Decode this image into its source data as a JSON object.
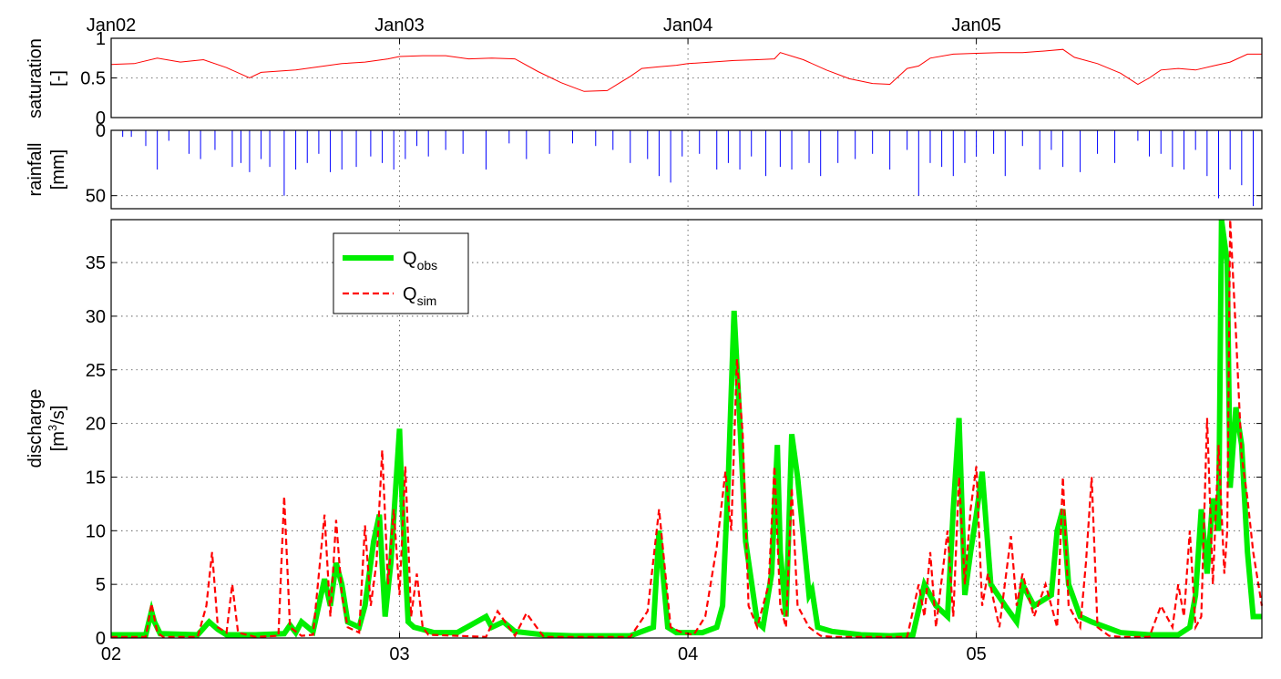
{
  "chart_data": [
    {
      "type": "line",
      "panel": "saturation",
      "ylabel": [
        "saturation",
        "[-]"
      ],
      "ylim": [
        0,
        1
      ],
      "yticks": [
        0,
        0.5,
        1
      ],
      "ytick_labels": [
        "0",
        "0.5",
        "1"
      ],
      "xlim": [
        2002.0,
        2005.99
      ],
      "xtick_labels": [
        "Jan02",
        "Jan03",
        "Jan04",
        "Jan05"
      ],
      "xtick_values": [
        2002,
        2003,
        2004,
        2005
      ],
      "grid": true,
      "series": [
        {
          "color": "#ff0000",
          "x": [
            2002.0,
            2002.08,
            2002.16,
            2002.24,
            2002.32,
            2002.4,
            2002.48,
            2002.52,
            2002.56,
            2002.64,
            2002.72,
            2002.8,
            2002.88,
            2002.96,
            2003.0,
            2003.08,
            2003.16,
            2003.24,
            2003.32,
            2003.4,
            2003.48,
            2003.56,
            2003.64,
            2003.72,
            2003.76,
            2003.8,
            2003.84,
            2003.9,
            2003.96,
            2004.0,
            2004.08,
            2004.16,
            2004.24,
            2004.3,
            2004.32,
            2004.4,
            2004.48,
            2004.56,
            2004.64,
            2004.7,
            2004.76,
            2004.8,
            2004.84,
            2004.92,
            2005.0,
            2005.08,
            2005.16,
            2005.24,
            2005.3,
            2005.34,
            2005.42,
            2005.5,
            2005.56,
            2005.6,
            2005.64,
            2005.7,
            2005.76,
            2005.82,
            2005.88,
            2005.94,
            2005.99
          ],
          "y": [
            0.67,
            0.68,
            0.75,
            0.7,
            0.73,
            0.63,
            0.5,
            0.57,
            0.58,
            0.6,
            0.64,
            0.68,
            0.7,
            0.74,
            0.77,
            0.78,
            0.78,
            0.74,
            0.75,
            0.74,
            0.58,
            0.44,
            0.33,
            0.34,
            0.43,
            0.52,
            0.62,
            0.64,
            0.66,
            0.68,
            0.7,
            0.72,
            0.73,
            0.74,
            0.82,
            0.73,
            0.6,
            0.49,
            0.43,
            0.42,
            0.62,
            0.65,
            0.75,
            0.8,
            0.81,
            0.82,
            0.82,
            0.84,
            0.86,
            0.76,
            0.68,
            0.56,
            0.42,
            0.5,
            0.6,
            0.62,
            0.6,
            0.65,
            0.7,
            0.8,
            0.8
          ]
        }
      ]
    },
    {
      "type": "bar",
      "panel": "rainfall",
      "ylabel": [
        "rainfall",
        "[mm]"
      ],
      "ylim": [
        0,
        60
      ],
      "y_reversed": true,
      "yticks": [
        0,
        50
      ],
      "ytick_labels": [
        "0",
        "50"
      ],
      "xlim": [
        2002.0,
        2005.99
      ],
      "grid": true,
      "series": [
        {
          "color": "#0000ff",
          "x": [
            2002.04,
            2002.07,
            2002.12,
            2002.16,
            2002.2,
            2002.27,
            2002.31,
            2002.36,
            2002.42,
            2002.45,
            2002.48,
            2002.52,
            2002.55,
            2002.6,
            2002.64,
            2002.68,
            2002.72,
            2002.76,
            2002.8,
            2002.85,
            2002.9,
            2002.94,
            2002.98,
            2003.02,
            2003.06,
            2003.1,
            2003.16,
            2003.22,
            2003.3,
            2003.38,
            2003.44,
            2003.52,
            2003.6,
            2003.68,
            2003.74,
            2003.8,
            2003.86,
            2003.9,
            2003.94,
            2003.98,
            2004.04,
            2004.1,
            2004.14,
            2004.18,
            2004.22,
            2004.27,
            2004.32,
            2004.36,
            2004.42,
            2004.46,
            2004.52,
            2004.58,
            2004.64,
            2004.7,
            2004.76,
            2004.8,
            2004.84,
            2004.88,
            2004.92,
            2004.96,
            2005.0,
            2005.06,
            2005.1,
            2005.16,
            2005.22,
            2005.26,
            2005.3,
            2005.36,
            2005.42,
            2005.48,
            2005.56,
            2005.6,
            2005.64,
            2005.68,
            2005.72,
            2005.76,
            2005.8,
            2005.84,
            2005.88,
            2005.92,
            2005.96
          ],
          "values": [
            5,
            5,
            12,
            30,
            8,
            18,
            22,
            15,
            28,
            25,
            32,
            22,
            28,
            50,
            30,
            25,
            18,
            32,
            30,
            28,
            20,
            25,
            30,
            22,
            12,
            20,
            15,
            18,
            30,
            10,
            22,
            18,
            10,
            12,
            15,
            25,
            22,
            35,
            40,
            20,
            18,
            30,
            25,
            30,
            20,
            35,
            28,
            30,
            25,
            35,
            25,
            22,
            18,
            30,
            15,
            50,
            25,
            28,
            35,
            25,
            20,
            18,
            35,
            12,
            30,
            15,
            28,
            32,
            18,
            25,
            8,
            20,
            18,
            28,
            30,
            15,
            35,
            52,
            30,
            42,
            58
          ]
        }
      ]
    },
    {
      "type": "line",
      "panel": "discharge",
      "ylabel": [
        "discharge",
        "[m",
        "3",
        "/s]"
      ],
      "ylim": [
        0,
        39
      ],
      "yticks": [
        0,
        5,
        10,
        15,
        20,
        25,
        30,
        35
      ],
      "ytick_labels": [
        "0",
        "5",
        "10",
        "15",
        "20",
        "25",
        "30",
        "35"
      ],
      "xlim": [
        2002.0,
        2005.99
      ],
      "xtick_values": [
        2002,
        2003,
        2004,
        2005
      ],
      "xtick_labels": [
        "02",
        "03",
        "04",
        "05"
      ],
      "grid": true,
      "legend": "top-left",
      "series": [
        {
          "name": "Q",
          "subscript": "obs",
          "color": "#00ee00",
          "style": "solid",
          "x": [
            2002.0,
            2002.12,
            2002.14,
            2002.15,
            2002.17,
            2002.3,
            2002.34,
            2002.37,
            2002.4,
            2002.5,
            2002.6,
            2002.62,
            2002.64,
            2002.66,
            2002.7,
            2002.74,
            2002.76,
            2002.78,
            2002.8,
            2002.82,
            2002.86,
            2002.88,
            2002.91,
            2002.93,
            2002.95,
            2002.97,
            2003.0,
            2003.01,
            2003.03,
            2003.05,
            2003.08,
            2003.12,
            2003.2,
            2003.3,
            2003.32,
            2003.36,
            2003.4,
            2003.5,
            2003.6,
            2003.7,
            2003.8,
            2003.88,
            2003.9,
            2003.93,
            2003.96,
            2004.0,
            2004.05,
            2004.1,
            2004.12,
            2004.14,
            2004.16,
            2004.18,
            2004.2,
            2004.24,
            2004.26,
            2004.29,
            2004.31,
            2004.32,
            2004.34,
            2004.36,
            2004.38,
            2004.42,
            2004.43,
            2004.45,
            2004.5,
            2004.6,
            2004.7,
            2004.78,
            2004.82,
            2004.86,
            2004.9,
            2004.92,
            2004.94,
            2004.96,
            2004.98,
            2005.0,
            2005.02,
            2005.05,
            2005.1,
            2005.14,
            2005.16,
            2005.2,
            2005.26,
            2005.28,
            2005.3,
            2005.32,
            2005.36,
            2005.4,
            2005.5,
            2005.6,
            2005.7,
            2005.74,
            2005.76,
            2005.78,
            2005.8,
            2005.82,
            2005.84,
            2005.85,
            2005.87,
            2005.88,
            2005.9,
            2005.92,
            2005.94,
            2005.96,
            2005.99
          ],
          "y": [
            0.3,
            0.3,
            2.5,
            1.5,
            0.4,
            0.3,
            1.5,
            0.8,
            0.3,
            0.3,
            0.4,
            1.2,
            0.5,
            1.5,
            0.6,
            5.5,
            3,
            7,
            5,
            1.5,
            1,
            3,
            9,
            11.5,
            2,
            7,
            19.5,
            12,
            1.5,
            1,
            0.8,
            0.5,
            0.5,
            2,
            1,
            1.5,
            0.6,
            0.3,
            0.2,
            0.2,
            0.2,
            1,
            10,
            1,
            0.5,
            0.5,
            0.5,
            1,
            3,
            15,
            30.5,
            20,
            9,
            1.5,
            1,
            6,
            18,
            8,
            2,
            19,
            15,
            4,
            4.5,
            1,
            0.6,
            0.3,
            0.2,
            0.3,
            5,
            3,
            2,
            12,
            20.5,
            4,
            8,
            11.5,
            15.5,
            5,
            3,
            1.5,
            5,
            3,
            4,
            10,
            12,
            5,
            2,
            1.5,
            0.5,
            0.3,
            0.3,
            1,
            4,
            12,
            6,
            13,
            10,
            40,
            35,
            14,
            21.5,
            18,
            8,
            2,
            2
          ]
        },
        {
          "name": "Q",
          "subscript": "sim",
          "color": "#ff0000",
          "style": "dashed",
          "x": [
            2002.0,
            2002.12,
            2002.14,
            2002.16,
            2002.18,
            2002.3,
            2002.33,
            2002.35,
            2002.37,
            2002.4,
            2002.42,
            2002.44,
            2002.5,
            2002.58,
            2002.6,
            2002.62,
            2002.66,
            2002.7,
            2002.74,
            2002.76,
            2002.78,
            2002.8,
            2002.82,
            2002.86,
            2002.88,
            2002.9,
            2002.92,
            2002.94,
            2002.96,
            2002.98,
            2003.0,
            2003.02,
            2003.04,
            2003.06,
            2003.08,
            2003.1,
            2003.2,
            2003.3,
            2003.34,
            2003.4,
            2003.44,
            2003.5,
            2003.6,
            2003.7,
            2003.8,
            2003.86,
            2003.9,
            2003.94,
            2003.98,
            2004.02,
            2004.06,
            2004.1,
            2004.13,
            2004.15,
            2004.17,
            2004.19,
            2004.21,
            2004.24,
            2004.28,
            2004.3,
            2004.32,
            2004.34,
            2004.36,
            2004.38,
            2004.42,
            2004.46,
            2004.5,
            2004.6,
            2004.7,
            2004.76,
            2004.8,
            2004.82,
            2004.84,
            2004.86,
            2004.9,
            2004.92,
            2004.94,
            2004.96,
            2004.98,
            2005.0,
            2005.02,
            2005.04,
            2005.08,
            2005.12,
            2005.14,
            2005.16,
            2005.2,
            2005.24,
            2005.28,
            2005.3,
            2005.32,
            2005.36,
            2005.38,
            2005.4,
            2005.42,
            2005.46,
            2005.5,
            2005.6,
            2005.64,
            2005.68,
            2005.7,
            2005.72,
            2005.74,
            2005.76,
            2005.78,
            2005.8,
            2005.82,
            2005.84,
            2005.86,
            2005.87,
            2005.88,
            2005.9,
            2005.92,
            2005.94,
            2005.96,
            2005.99
          ],
          "y": [
            0.1,
            0.1,
            3.2,
            0.5,
            0.1,
            0.1,
            3,
            8,
            1,
            0.5,
            5,
            0.5,
            0.1,
            0.2,
            13.2,
            1,
            0.2,
            0.3,
            11.5,
            2,
            11,
            4,
            1,
            0.5,
            10.5,
            3,
            7,
            17.5,
            5,
            12,
            4,
            16,
            2,
            6,
            1,
            0.3,
            0.2,
            0.1,
            2.5,
            0.2,
            2.3,
            0.1,
            0.1,
            0.1,
            0.1,
            2.5,
            12,
            1,
            0.5,
            0.3,
            2,
            8.5,
            15.5,
            10,
            26,
            19,
            3,
            1,
            5,
            16,
            3,
            1,
            14,
            3,
            1,
            0.2,
            0.1,
            0.1,
            0.1,
            0.1,
            5,
            2,
            8,
            1,
            10,
            2,
            15,
            5,
            12,
            16,
            3,
            6,
            1,
            9.5,
            3,
            6,
            2,
            5,
            1,
            15,
            3,
            1,
            7,
            15,
            1,
            0.2,
            0.1,
            0.1,
            3,
            1,
            5,
            2,
            10,
            1,
            2,
            20.5,
            5,
            18,
            6,
            10,
            39,
            28.5,
            17,
            13,
            8,
            3
          ]
        }
      ]
    }
  ]
}
